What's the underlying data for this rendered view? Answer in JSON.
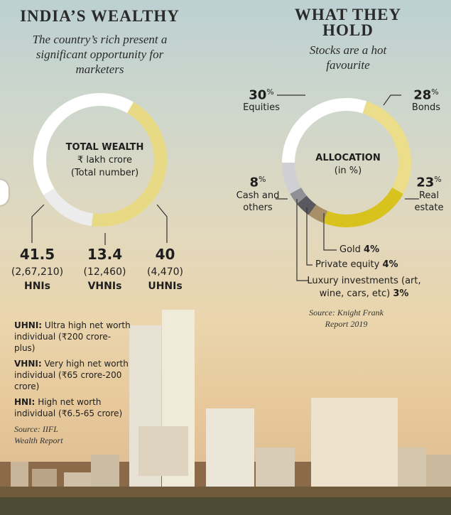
{
  "left": {
    "title": "INDIA’S WEALTHY",
    "subtitle": "The country’s rich present a significant opportunity for marketers",
    "center_title": "TOTAL WEALTH",
    "center_unit": "₹ lakh crore",
    "center_note": "(Total number)",
    "values": [
      {
        "value": "41.5",
        "count": "(2,67,210)",
        "label": "HNIs"
      },
      {
        "value": "13.4",
        "count": "(12,460)",
        "label": "VHNIs"
      },
      {
        "value": "40",
        "count": "(4,470)",
        "label": "UHNIs"
      }
    ],
    "legend": [
      {
        "term": "UHNI:",
        "desc": "Ultra high net worth individual (₹200 crore-plus)"
      },
      {
        "term": "VHNI:",
        "desc": "Very high net worth individual (₹65 crore-200 crore)"
      },
      {
        "term": "HNI:",
        "desc": "High net worth individual (₹6.5-65 crore)"
      }
    ],
    "source": "Source: IIFL Wealth Report"
  },
  "right": {
    "title_line1": "WHAT THEY",
    "title_line2": "HOLD",
    "subtitle": "Stocks are a hot favourite",
    "center_title": "ALLOCATION",
    "center_unit": "(in %)",
    "labels": {
      "equities_value": "30",
      "equities_label": "Equities",
      "bonds_value": "28",
      "bonds_label": "Bonds",
      "real_estate_value": "23",
      "real_estate_label": "Real estate",
      "cash_value": "8",
      "cash_label": "Cash and others",
      "gold_label": "Gold",
      "gold_value": "4%",
      "pe_label": "Private equity",
      "pe_value": "4%",
      "luxury_label": "Luxury investments (art, wine, cars, etc)",
      "luxury_value": "3%",
      "pct_sign": "%"
    },
    "source": "Source: Knight Frank Report 2019"
  },
  "chart_data": [
    {
      "type": "pie",
      "title": "TOTAL WEALTH",
      "subtitle": "₹ lakh crore (Total number)",
      "categories": [
        "HNIs",
        "VHNIs",
        "UHNIs"
      ],
      "values": [
        41.5,
        13.4,
        40
      ],
      "counts": [
        267210,
        12460,
        4470
      ],
      "colors": [
        "#e8da84",
        "#ececec",
        "#ffffff"
      ]
    },
    {
      "type": "pie",
      "title": "ALLOCATION",
      "subtitle": "(in %)",
      "categories": [
        "Equities",
        "Bonds",
        "Real estate",
        "Gold",
        "Private equity",
        "Luxury investments (art, wine, cars, etc)",
        "Cash and others"
      ],
      "values": [
        30,
        28,
        23,
        4,
        4,
        3,
        8
      ],
      "colors": [
        "#ffffff",
        "#ebdd8a",
        "#d8c21e",
        "#a88f67",
        "#58585e",
        "#8f9096",
        "#cfcfd4"
      ]
    }
  ]
}
